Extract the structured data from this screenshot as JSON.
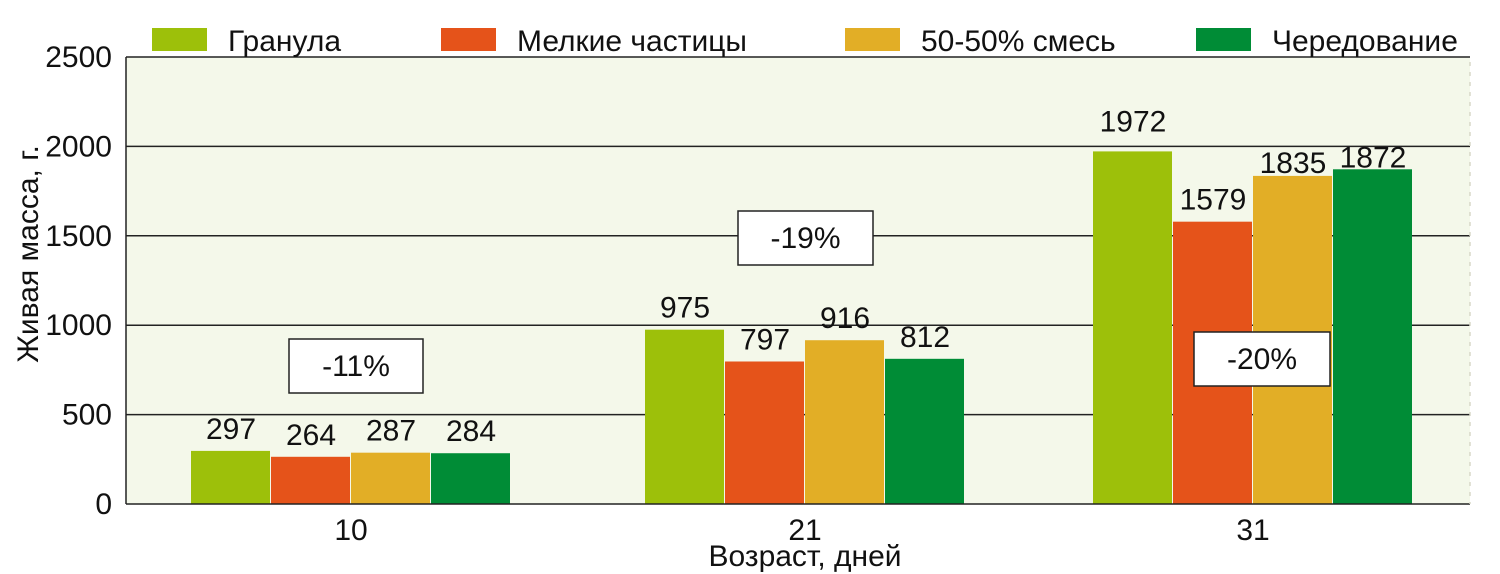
{
  "chart_data": {
    "type": "bar",
    "title": "",
    "xlabel": "Возраст, дней",
    "ylabel": "Живая масса, г.",
    "categories": [
      "10",
      "21",
      "31"
    ],
    "ylim": [
      0,
      2500
    ],
    "yticks": [
      0,
      500,
      1000,
      1500,
      2000,
      2500
    ],
    "grid": true,
    "legend_position": "top",
    "series": [
      {
        "name": "Гранула",
        "color": "#9dc00a",
        "values": [
          297,
          975,
          1972
        ]
      },
      {
        "name": "Мелкие частицы",
        "color": "#e5531a",
        "values": [
          264,
          797,
          1579
        ]
      },
      {
        "name": "50-50% смесь",
        "color": "#e2ae26",
        "values": [
          287,
          916,
          1835
        ]
      },
      {
        "name": "Чередование",
        "color": "#008c36",
        "values": [
          284,
          812,
          1872
        ]
      }
    ],
    "annotations": [
      {
        "text": "-11%",
        "category": "10"
      },
      {
        "text": "-19%",
        "category": "21"
      },
      {
        "text": "-20%",
        "category": "31"
      }
    ],
    "plot_background": "#f4f8ea"
  }
}
